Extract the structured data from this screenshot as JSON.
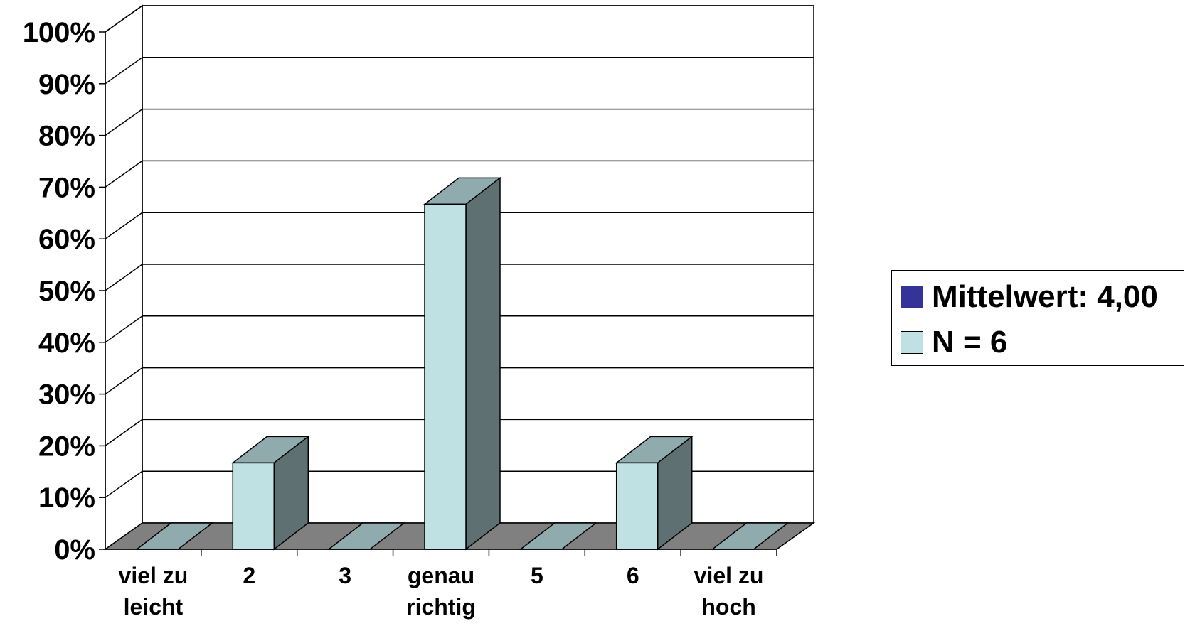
{
  "chart_data": {
    "type": "bar",
    "style": "3d-column",
    "categories": [
      [
        "viel zu",
        "leicht"
      ],
      [
        "2"
      ],
      [
        "3"
      ],
      [
        "genau",
        "richtig"
      ],
      [
        "5"
      ],
      [
        "6"
      ],
      [
        "viel zu",
        "hoch"
      ]
    ],
    "values": [
      0,
      16.7,
      0,
      66.7,
      0,
      16.7,
      0
    ],
    "ylim": [
      0,
      100
    ],
    "ytick_step": 10,
    "ytick_format": "percent",
    "grid": true,
    "legend_position": "right",
    "legend": [
      {
        "label": "Mittelwert: 4,00",
        "color": "#333399"
      },
      {
        "label": "N = 6",
        "color": "#bfe1e4"
      }
    ],
    "colors": {
      "bar_front": "#bfe1e4",
      "bar_top": "#8fabad",
      "bar_side": "#5e7072",
      "floor": "#808080",
      "zero_bar": "#8fabad"
    }
  }
}
